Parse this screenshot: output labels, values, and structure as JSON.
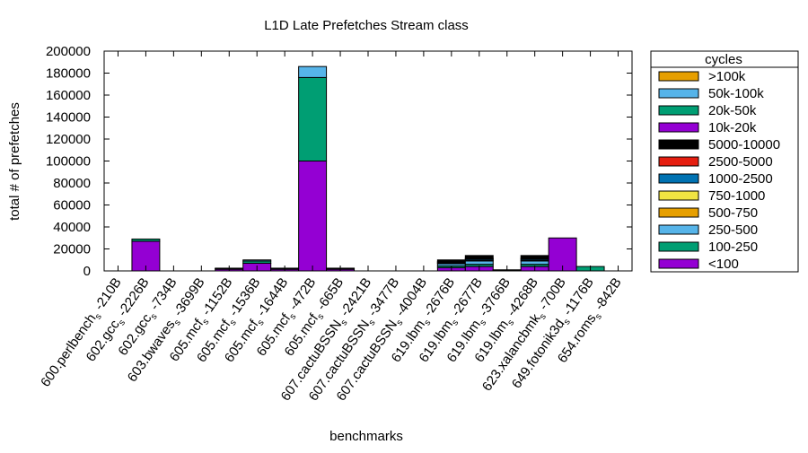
{
  "chart_data": {
    "type": "bar",
    "stacked": true,
    "title": "L1D Late Prefetches Stream class",
    "xlabel": "benchmarks",
    "ylabel": "total # of prefetches",
    "ylim": [
      0,
      200000
    ],
    "yticks": [
      "0",
      "20000",
      "40000",
      "60000",
      "80000",
      "100000",
      "120000",
      "140000",
      "160000",
      "180000",
      "200000"
    ],
    "legend_title": "cycles",
    "legend_position": "right",
    "categories": [
      {
        "name": "600.perlbench",
        "sub": "s",
        "suffix": " -210B"
      },
      {
        "name": "602.gcc",
        "sub": "s",
        "suffix": " -2226B"
      },
      {
        "name": "602.gcc",
        "sub": "s",
        "suffix": " -734B"
      },
      {
        "name": "603.bwaves",
        "sub": "s",
        "suffix": " -3699B"
      },
      {
        "name": "605.mcf",
        "sub": "s",
        "suffix": " -1152B"
      },
      {
        "name": "605.mcf",
        "sub": "s",
        "suffix": " -1536B"
      },
      {
        "name": "605.mcf",
        "sub": "s",
        "suffix": " -1644B"
      },
      {
        "name": "605.mcf",
        "sub": "s",
        "suffix": " -472B"
      },
      {
        "name": "605.mcf",
        "sub": "s",
        "suffix": " -665B"
      },
      {
        "name": "607.cactuBSSN",
        "sub": "s",
        "suffix": " -2421B"
      },
      {
        "name": "607.cactuBSSN",
        "sub": "s",
        "suffix": " -3477B"
      },
      {
        "name": "607.cactuBSSN",
        "sub": "s",
        "suffix": " -4004B"
      },
      {
        "name": "619.lbm",
        "sub": "s",
        "suffix": " -2676B"
      },
      {
        "name": "619.lbm",
        "sub": "s",
        "suffix": " -2677B"
      },
      {
        "name": "619.lbm",
        "sub": "s",
        "suffix": " -3766B"
      },
      {
        "name": "619.lbm",
        "sub": "s",
        "suffix": " -4268B"
      },
      {
        "name": "623.xalancbmk",
        "sub": "s",
        "suffix": " -700B"
      },
      {
        "name": "649.fotonik3d",
        "sub": "s",
        "suffix": " -1176B"
      },
      {
        "name": "654.roms",
        "sub": "s",
        "suffix": " -842B"
      }
    ],
    "series": [
      {
        "name": "<100",
        "color": "#9400d3",
        "values": [
          0,
          27000,
          0,
          0,
          1500,
          7000,
          1500,
          100000,
          1500,
          0,
          0,
          0,
          3000,
          4000,
          500,
          4000,
          30000,
          0,
          0
        ]
      },
      {
        "name": "100-250",
        "color": "#009e73",
        "values": [
          0,
          2000,
          0,
          0,
          500,
          2000,
          500,
          76000,
          500,
          0,
          0,
          0,
          1500,
          2000,
          300,
          2000,
          0,
          4000,
          0
        ]
      },
      {
        "name": "250-500",
        "color": "#56b4e9",
        "values": [
          0,
          0,
          0,
          0,
          300,
          1000,
          300,
          10000,
          300,
          0,
          0,
          0,
          2000,
          3000,
          200,
          3000,
          0,
          0,
          0
        ]
      },
      {
        "name": "500-750",
        "color": "#e69f00",
        "values": [
          0,
          0,
          0,
          0,
          0,
          0,
          0,
          0,
          0,
          0,
          0,
          0,
          500,
          500,
          0,
          500,
          0,
          0,
          0
        ]
      },
      {
        "name": "750-1000",
        "color": "#f0e442",
        "values": [
          0,
          0,
          0,
          0,
          0,
          0,
          0,
          0,
          0,
          0,
          0,
          0,
          500,
          500,
          0,
          500,
          0,
          0,
          0
        ]
      },
      {
        "name": "1000-2500",
        "color": "#0072b2",
        "values": [
          0,
          0,
          0,
          0,
          200,
          0,
          200,
          0,
          200,
          0,
          0,
          0,
          500,
          1000,
          0,
          1000,
          0,
          0,
          0
        ]
      },
      {
        "name": "2500-5000",
        "color": "#e51e10",
        "values": [
          0,
          0,
          0,
          0,
          0,
          0,
          0,
          0,
          0,
          0,
          0,
          0,
          500,
          500,
          0,
          500,
          0,
          0,
          0
        ]
      },
      {
        "name": "5000-10000",
        "color": "#000000",
        "values": [
          0,
          0,
          0,
          0,
          0,
          0,
          0,
          0,
          0,
          0,
          0,
          0,
          1500,
          2500,
          0,
          2500,
          0,
          0,
          0
        ]
      },
      {
        "name": "10k-20k",
        "color": "#9400d3",
        "values": [
          0,
          0,
          0,
          0,
          0,
          0,
          0,
          0,
          0,
          0,
          0,
          0,
          0,
          0,
          0,
          0,
          0,
          0,
          0
        ]
      },
      {
        "name": "20k-50k",
        "color": "#009e73",
        "values": [
          0,
          0,
          0,
          0,
          0,
          0,
          0,
          0,
          0,
          0,
          0,
          0,
          0,
          0,
          0,
          0,
          0,
          0,
          0
        ]
      },
      {
        "name": "50k-100k",
        "color": "#56b4e9",
        "values": [
          0,
          0,
          0,
          0,
          0,
          0,
          0,
          0,
          0,
          0,
          0,
          0,
          0,
          0,
          0,
          0,
          0,
          0,
          0
        ]
      },
      {
        "name": ">100k",
        "color": "#e69f00",
        "values": [
          0,
          0,
          0,
          0,
          0,
          0,
          0,
          0,
          0,
          0,
          0,
          0,
          0,
          0,
          0,
          0,
          0,
          0,
          0
        ]
      }
    ]
  }
}
